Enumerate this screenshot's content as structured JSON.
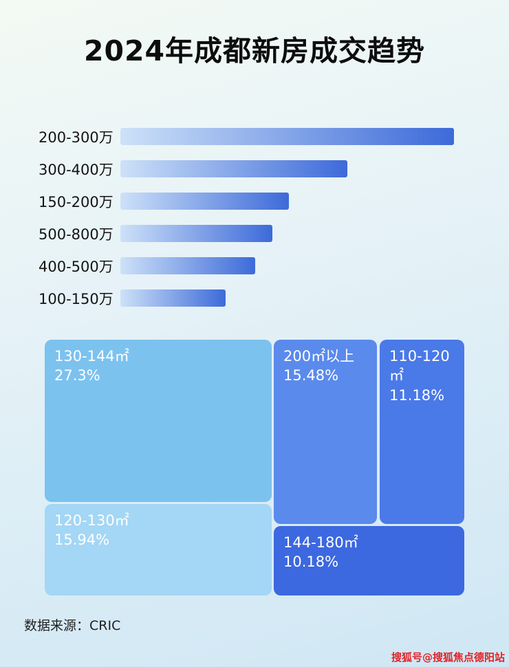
{
  "title": "2024年成都新房成交趋势",
  "footer": {
    "source": "数据来源：CRIC"
  },
  "watermark": "搜狐号@搜狐焦点德阳站",
  "colors": {
    "bar_gradient_start": "#cde1f8",
    "bar_gradient_end": "#3d6ad9",
    "blocks": [
      "#7cc2ef",
      "#5a8aec",
      "#4a79e8",
      "#a4d6f5",
      "#3c68e0"
    ]
  },
  "chart_data": [
    {
      "type": "bar",
      "title": "2024年成都新房成交趋势",
      "orientation": "horizontal",
      "categories": [
        "200-300万",
        "300-400万",
        "150-200万",
        "500-800万",
        "400-500万",
        "100-150万"
      ],
      "values": [
        100,
        68,
        50.5,
        45.5,
        40.5,
        31.5
      ],
      "value_note": "no numeric axis shown; values are bar lengths as % of the longest bar",
      "xlabel": "",
      "ylabel": "",
      "grid": false,
      "legend": false
    },
    {
      "type": "treemap",
      "items": [
        {
          "label": "130-144㎡",
          "value": 27.3,
          "display": "27.3%"
        },
        {
          "label": "200㎡以上",
          "value": 15.48,
          "display": "15.48%"
        },
        {
          "label": "110-120㎡",
          "value": 11.18,
          "display": "11.18%"
        },
        {
          "label": "120-130㎡",
          "value": 15.94,
          "display": "15.94%"
        },
        {
          "label": "144-180㎡",
          "value": 10.18,
          "display": "10.18%"
        }
      ]
    }
  ]
}
